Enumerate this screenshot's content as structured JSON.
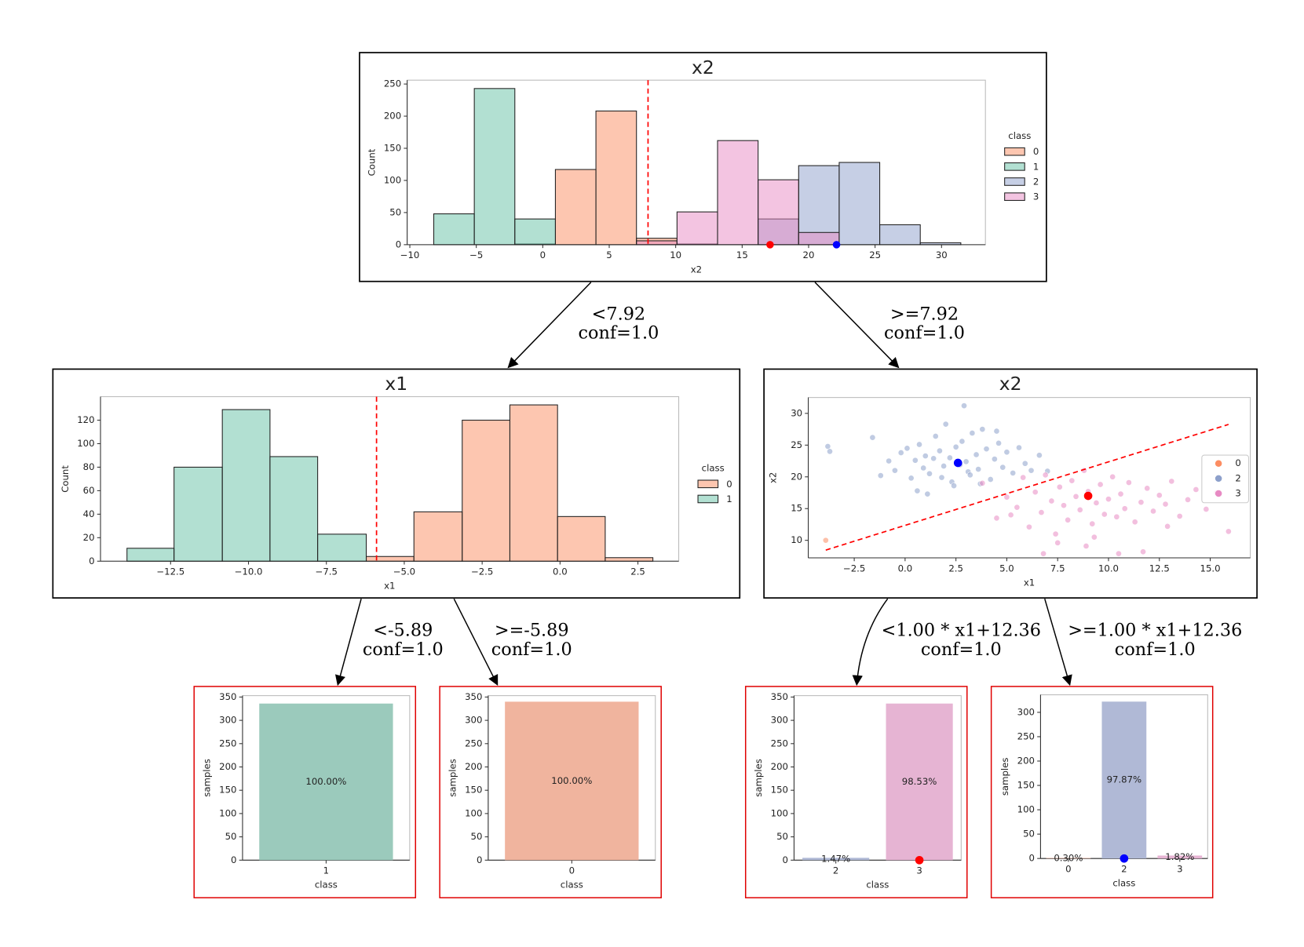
{
  "chart_data": [
    {
      "type": "histogram",
      "title": "x2",
      "xlabel": "x2",
      "ylabel": "Count",
      "legend_title": "class",
      "bins": [
        -8.2,
        -5.15,
        -2.1,
        0.95,
        4.0,
        7.05,
        10.1,
        13.15,
        16.2,
        19.25,
        22.3,
        25.35,
        28.4,
        31.45
      ],
      "series": [
        {
          "name": "0",
          "color": "#fc8d62",
          "values": [
            0,
            0,
            1,
            117,
            208,
            10,
            1,
            0,
            0,
            0,
            0,
            0,
            0
          ]
        },
        {
          "name": "1",
          "color": "#66c2a5",
          "values": [
            48,
            243,
            40,
            0,
            0,
            0,
            0,
            0,
            0,
            0,
            0,
            0,
            0
          ]
        },
        {
          "name": "2",
          "color": "#8da0cb",
          "values": [
            0,
            0,
            0,
            0,
            0,
            0,
            0,
            0,
            40,
            123,
            128,
            31,
            3
          ]
        },
        {
          "name": "3",
          "color": "#e78ac3",
          "values": [
            0,
            0,
            0,
            0,
            0,
            6,
            51,
            162,
            101,
            19,
            0,
            0,
            0
          ]
        }
      ],
      "xlim": [
        -10.2,
        33.3
      ],
      "ylim": [
        0,
        256
      ],
      "xticks": [
        {
          "value": -10,
          "label": "−10"
        },
        {
          "value": -5,
          "label": "−5"
        },
        0,
        5,
        10,
        15,
        20,
        25,
        30
      ],
      "yticks": [
        0,
        50,
        100,
        150,
        200,
        250
      ],
      "split": 7.92,
      "split_color": "#ff0000",
      "markers": [
        {
          "x": 17.1,
          "color": "#ff0000"
        },
        {
          "x": 22.1,
          "color": "#0000ff"
        }
      ]
    },
    {
      "type": "histogram",
      "title": "x1",
      "xlabel": "x1",
      "ylabel": "Count",
      "legend_title": "class",
      "bins": [
        -13.9,
        -12.39,
        -10.84,
        -9.31,
        -7.78,
        -6.22,
        -4.69,
        -3.14,
        -1.61,
        -0.08,
        1.45,
        2.98
      ],
      "series": [
        {
          "name": "0",
          "color": "#fc8d62",
          "values": [
            0,
            0,
            0,
            0,
            0,
            4,
            42,
            120,
            133,
            38,
            3
          ]
        },
        {
          "name": "1",
          "color": "#66c2a5",
          "values": [
            11,
            80,
            129,
            89,
            23,
            0,
            0,
            0,
            0,
            0,
            0
          ]
        }
      ],
      "xlim": [
        -14.75,
        3.81
      ],
      "ylim": [
        0,
        140
      ],
      "xticks": [
        {
          "value": -12.5,
          "label": "−12.5"
        },
        {
          "value": -10,
          "label": "−10.0"
        },
        {
          "value": -7.5,
          "label": "−7.5"
        },
        {
          "value": -5,
          "label": "−5.0"
        },
        {
          "value": -2.5,
          "label": "−2.5"
        },
        {
          "value": 0,
          "label": "0.0"
        },
        2.5
      ],
      "yticks": [
        0,
        20,
        40,
        60,
        80,
        100,
        120
      ],
      "split": -5.89,
      "split_color": "#ff0000"
    },
    {
      "type": "scatter",
      "title": "x2",
      "xlabel": "x1",
      "ylabel": "x2",
      "series": [
        {
          "name": "0",
          "color": "#fc8d62",
          "x": [
            -3.9
          ],
          "y": [
            10.0
          ]
        },
        {
          "name": "2",
          "color": "#8da0cb",
          "x": [
            -3.8,
            -3.7,
            -1.6,
            -1.2,
            -0.8,
            -0.5,
            -0.2,
            0.1,
            0.3,
            0.5,
            0.7,
            0.9,
            1.0,
            1.2,
            1.4,
            1.5,
            1.7,
            1.9,
            2.0,
            2.2,
            2.3,
            2.5,
            2.7,
            2.8,
            3.0,
            3.1,
            3.3,
            3.5,
            3.6,
            3.8,
            4.0,
            4.2,
            4.4,
            4.6,
            4.8,
            5.0,
            5.3,
            5.6,
            5.9,
            6.2,
            6.6,
            7.0,
            1.1,
            2.4,
            3.7,
            0.6,
            4.5,
            2.9,
            1.8,
            3.2
          ],
          "y": [
            24.8,
            24.0,
            26.2,
            20.2,
            22.5,
            21.0,
            23.8,
            24.5,
            19.8,
            22.6,
            25.1,
            21.4,
            23.3,
            20.5,
            22.9,
            26.4,
            24.1,
            21.7,
            28.3,
            23.0,
            19.2,
            24.7,
            21.9,
            25.6,
            22.4,
            20.8,
            26.9,
            23.5,
            21.2,
            27.5,
            24.4,
            19.6,
            22.8,
            25.3,
            21.5,
            23.9,
            20.6,
            24.6,
            22.1,
            21.0,
            23.4,
            20.9,
            17.3,
            18.6,
            18.9,
            17.8,
            27.2,
            31.2,
            19.9,
            20.3
          ]
        },
        {
          "name": "3",
          "color": "#e78ac3",
          "x": [
            3.8,
            4.5,
            5.0,
            5.5,
            5.8,
            6.1,
            6.4,
            6.7,
            6.9,
            7.2,
            7.4,
            7.6,
            7.8,
            8.0,
            8.2,
            8.4,
            8.6,
            8.8,
            9.0,
            9.2,
            9.4,
            9.6,
            9.8,
            10.0,
            10.2,
            10.4,
            10.6,
            10.8,
            11.0,
            11.3,
            11.6,
            11.9,
            12.2,
            12.5,
            12.8,
            13.1,
            13.5,
            13.9,
            14.3,
            14.8,
            15.3,
            15.9,
            6.8,
            7.5,
            8.9,
            10.5,
            11.7,
            9.3,
            12.9,
            5.2
          ],
          "y": [
            19.0,
            13.5,
            16.8,
            15.2,
            19.9,
            12.1,
            17.6,
            14.4,
            20.3,
            16.2,
            11.0,
            18.4,
            15.5,
            13.2,
            19.4,
            16.9,
            14.8,
            21.0,
            17.7,
            12.6,
            15.9,
            18.8,
            14.1,
            16.5,
            20.0,
            13.7,
            17.3,
            15.0,
            19.1,
            12.9,
            16.0,
            18.2,
            14.6,
            17.1,
            15.7,
            19.3,
            13.8,
            16.4,
            18.0,
            14.9,
            17.5,
            11.4,
            7.9,
            9.6,
            9.1,
            7.9,
            8.2,
            10.5,
            12.2,
            14.0
          ]
        }
      ],
      "xlim": [
        -4.76,
        16.97
      ],
      "ylim": [
        7.24,
        32.5
      ],
      "xticks": [
        {
          "value": -2.5,
          "label": "−2.5"
        },
        {
          "value": 0,
          "label": "0.0"
        },
        2.5,
        {
          "value": 5,
          "label": "5.0"
        },
        7.5,
        {
          "value": 10,
          "label": "10.0"
        },
        12.5,
        {
          "value": 15,
          "label": "15.0"
        }
      ],
      "yticks": [
        10,
        15,
        20,
        25,
        30
      ],
      "split_line": {
        "x": [
          -3.9,
          15.9
        ],
        "y": [
          8.46,
          28.26
        ],
        "color": "#ff0000"
      },
      "markers": [
        {
          "x": 2.6,
          "y": 22.2,
          "color": "#0000ff"
        },
        {
          "x": 9.0,
          "y": 17.0,
          "color": "#ff0000"
        }
      ]
    },
    {
      "type": "bar",
      "xlabel": "class",
      "ylabel": "samples",
      "categories": [
        "1"
      ],
      "values": [
        336
      ],
      "value_labels": [
        "100.00%"
      ],
      "colors": [
        "#9bcabc"
      ],
      "ylim": [
        0,
        353
      ],
      "yticks": [
        0,
        50,
        100,
        150,
        200,
        250,
        300,
        350
      ]
    },
    {
      "type": "bar",
      "xlabel": "class",
      "ylabel": "samples",
      "categories": [
        "0"
      ],
      "values": [
        340
      ],
      "value_labels": [
        "100.00%"
      ],
      "colors": [
        "#f0b49e"
      ],
      "ylim": [
        0,
        353
      ],
      "yticks": [
        0,
        50,
        100,
        150,
        200,
        250,
        300,
        350
      ]
    },
    {
      "type": "bar",
      "xlabel": "class",
      "ylabel": "samples",
      "categories": [
        "2",
        "3"
      ],
      "values": [
        5,
        336
      ],
      "value_labels": [
        "1.47%",
        "98.53%"
      ],
      "colors": [
        "#b0b9d6",
        "#e6b4d3"
      ],
      "ylim": [
        0,
        353
      ],
      "yticks": [
        0,
        50,
        100,
        150,
        200,
        250,
        300,
        350
      ],
      "marker": {
        "category": "3",
        "color": "#ff0000"
      }
    },
    {
      "type": "bar",
      "xlabel": "class",
      "ylabel": "samples",
      "categories": [
        "0",
        "2",
        "3"
      ],
      "values": [
        1,
        322,
        6
      ],
      "value_labels": [
        "0.30%",
        "97.87%",
        "1.82%"
      ],
      "colors": [
        "#f0b49e",
        "#b0b9d6",
        "#e6b4d3"
      ],
      "ylim": [
        0,
        336
      ],
      "yticks": [
        0,
        50,
        100,
        150,
        200,
        250,
        300
      ],
      "marker": {
        "category": "2",
        "color": "#0000ff"
      }
    }
  ],
  "edges": [
    {
      "condition": "<7.92",
      "confidence": "conf=1.0"
    },
    {
      "condition": ">=7.92",
      "confidence": "conf=1.0"
    },
    {
      "condition": "<-5.89",
      "confidence": "conf=1.0"
    },
    {
      "condition": ">=-5.89",
      "confidence": "conf=1.0"
    },
    {
      "condition": "<1.00 * x1+12.36",
      "confidence": "conf=1.0"
    },
    {
      "condition": ">=1.00 * x1+12.36",
      "confidence": "conf=1.0"
    }
  ]
}
